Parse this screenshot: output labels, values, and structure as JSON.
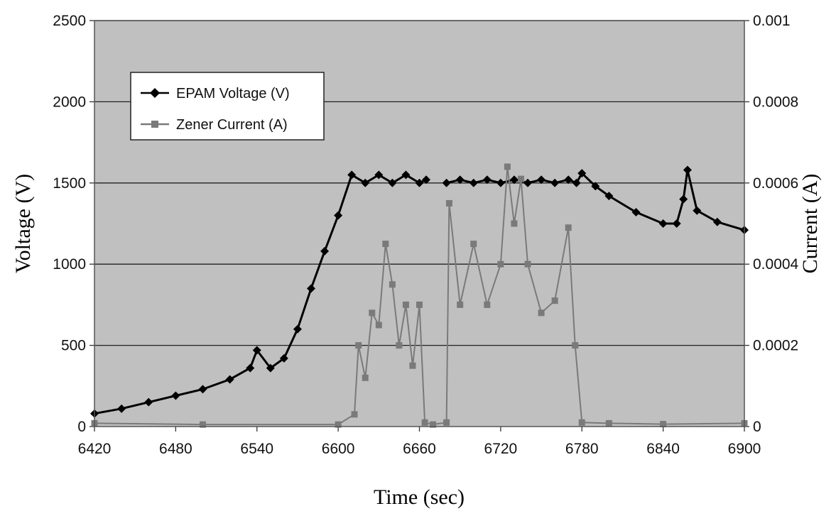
{
  "chart_data": {
    "type": "line",
    "title": "",
    "xlabel": "Time (sec)",
    "ylabel": "Voltage (V)",
    "y2label": "Current (A)",
    "xlim": [
      6420,
      6900
    ],
    "ylim": [
      0,
      2500
    ],
    "y2lim": [
      0,
      0.001
    ],
    "xticks": [
      "6420",
      "6480",
      "6540",
      "6600",
      "6660",
      "6720",
      "6780",
      "6840",
      "6900"
    ],
    "yticks": [
      "0",
      "500",
      "1000",
      "1500",
      "2000",
      "2500"
    ],
    "y2ticks": [
      "0",
      "0.0002",
      "0.0004",
      "0.0006",
      "0.0008",
      "0.001"
    ],
    "grid": "horizontal",
    "legend_position": "top-left",
    "plot_background": "#c0c0c0",
    "series": [
      {
        "name": "EPAM Voltage (V)",
        "axis": "left",
        "color": "#000000",
        "marker": "diamond",
        "x": [
          6420,
          6440,
          6460,
          6480,
          6500,
          6520,
          6535,
          6540,
          6550,
          6560,
          6570,
          6580,
          6590,
          6600,
          6610,
          6620,
          6630,
          6640,
          6650,
          6660,
          6665,
          6670,
          6675,
          6680,
          6690,
          6700,
          6710,
          6720,
          6730,
          6740,
          6750,
          6760,
          6770,
          6776,
          6780,
          6790,
          6800,
          6820,
          6840,
          6850,
          6855,
          6858,
          6865,
          6880,
          6900
        ],
        "y": [
          80,
          110,
          150,
          190,
          230,
          290,
          360,
          470,
          360,
          420,
          600,
          850,
          1080,
          1300,
          1550,
          1500,
          1550,
          1500,
          1550,
          1500,
          1520,
          null,
          null,
          1500,
          1520,
          1500,
          1520,
          1500,
          1520,
          1500,
          1520,
          1500,
          1520,
          1500,
          1560,
          1480,
          1420,
          1320,
          1250,
          1250,
          1400,
          1580,
          1330,
          1260,
          1210
        ]
      },
      {
        "name": "Zener Current  (A)",
        "axis": "right",
        "color": "#7a7a7a",
        "marker": "square",
        "x": [
          6420,
          6500,
          6600,
          6612,
          6615,
          6620,
          6625,
          6630,
          6635,
          6640,
          6645,
          6650,
          6655,
          6660,
          6664,
          6670,
          6680,
          6682,
          6690,
          6700,
          6710,
          6720,
          6725,
          6730,
          6735,
          6740,
          6750,
          6760,
          6770,
          6775,
          6780,
          6800,
          6840,
          6900
        ],
        "y": [
          8e-06,
          5e-06,
          5e-06,
          3e-05,
          0.0002,
          0.00012,
          0.00028,
          0.00025,
          0.00045,
          0.00035,
          0.0002,
          0.0003,
          0.00015,
          0.0003,
          1e-05,
          5e-06,
          1e-05,
          0.00055,
          0.0003,
          0.00045,
          0.0003,
          0.0004,
          0.00064,
          0.0005,
          0.00061,
          0.0004,
          0.00028,
          0.00031,
          0.00049,
          0.0002,
          1e-05,
          8e-06,
          6e-06,
          8e-06
        ]
      }
    ]
  }
}
